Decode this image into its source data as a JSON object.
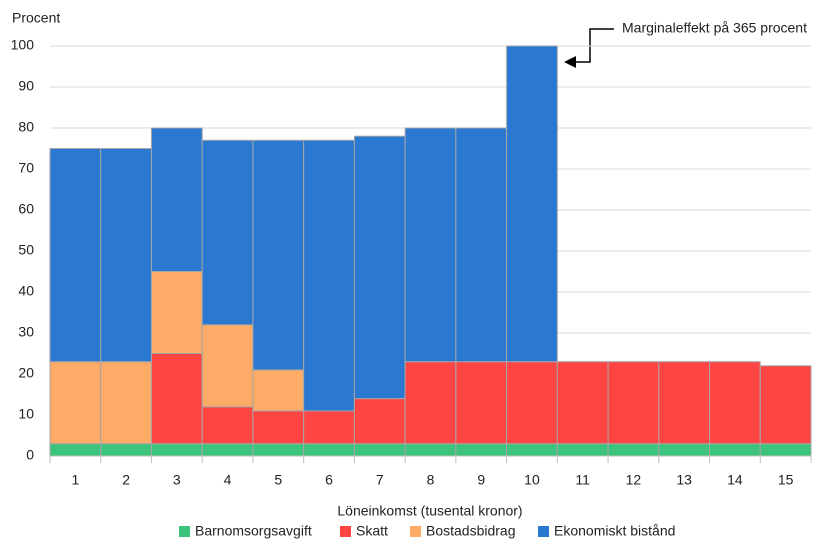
{
  "chart_data": {
    "type": "stacked_bar",
    "y_label": "Procent",
    "x_label": "Löneinkomst (tusental kronor)",
    "annotation": "Marginaleffekt på 365 procent",
    "categories": [
      "1",
      "2",
      "3",
      "4",
      "5",
      "6",
      "7",
      "8",
      "9",
      "10",
      "11",
      "12",
      "13",
      "14",
      "15"
    ],
    "series": [
      {
        "name": "Barnomsorgsavgift",
        "color": "#3cc47c",
        "values": [
          3,
          3,
          3,
          3,
          3,
          3,
          3,
          3,
          3,
          3,
          3,
          3,
          3,
          3,
          3
        ]
      },
      {
        "name": "Skatt",
        "color": "#ff4444",
        "values": [
          0,
          0,
          22,
          9,
          8,
          8,
          11,
          20,
          20,
          20,
          20,
          20,
          20,
          20,
          19
        ]
      },
      {
        "name": "Bostadsbidrag",
        "color": "#fdab67",
        "values": [
          20,
          20,
          20,
          20,
          10,
          0,
          0,
          0,
          0,
          0,
          0,
          0,
          0,
          0,
          0
        ]
      },
      {
        "name": "Ekonomiskt bistånd",
        "color": "#2b78d0",
        "values": [
          52,
          52,
          35,
          45,
          56,
          66,
          64,
          57,
          57,
          77,
          0,
          0,
          0,
          0,
          0
        ]
      }
    ],
    "ylim": [
      0,
      100
    ],
    "yticks": [
      0,
      10,
      20,
      30,
      40,
      50,
      60,
      70,
      80,
      90,
      100
    ],
    "grid": true,
    "legend": "bottom"
  }
}
